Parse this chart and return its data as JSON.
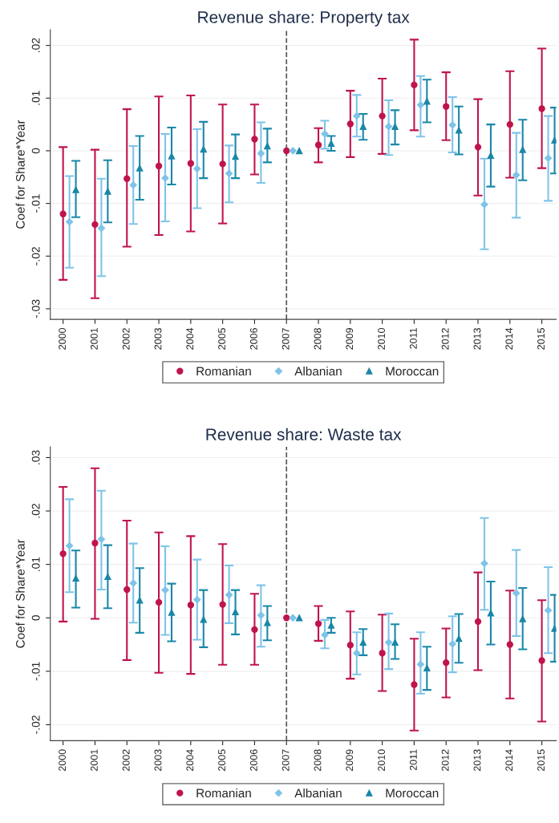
{
  "chart_data": [
    {
      "type": "scatter",
      "title": "Revenue share: Property tax",
      "ylabel": "Coef for Share*Year",
      "categories": [
        "2000",
        "2001",
        "2002",
        "2003",
        "2004",
        "2005",
        "2006",
        "2007",
        "2008",
        "2009",
        "2010",
        "2011",
        "2012",
        "2013",
        "2014",
        "2015"
      ],
      "ylim": [
        -0.032,
        0.023
      ],
      "yticks": [
        {
          "value": -0.03,
          "label": "-.03"
        },
        {
          "value": -0.02,
          "label": "-.02"
        },
        {
          "value": -0.01,
          "label": "-.01"
        },
        0,
        {
          "value": 0.01,
          "label": ".01"
        },
        {
          "value": 0.02,
          "label": ".02"
        }
      ],
      "grid": "y",
      "legend": "bottom",
      "ref_lines": [
        {
          "axis": "x",
          "value": "2007",
          "color": "#555555",
          "line_style": "dashed"
        }
      ],
      "series": [
        {
          "name": "Romanian",
          "color": "#c0144a",
          "marker": "circle",
          "values": [
            -0.012,
            -0.014,
            -0.0053,
            -0.0029,
            -0.0024,
            -0.0025,
            0.0022,
            0,
            0.0011,
            0.0051,
            0.0066,
            0.0125,
            0.0084,
            0.0007,
            0.005,
            0.008
          ],
          "errors": [
            [
              -0.0245,
              0.0007
            ],
            [
              -0.028,
              0.0002
            ],
            [
              -0.0182,
              0.0079
            ],
            [
              -0.016,
              0.0103
            ],
            [
              -0.0153,
              0.0105
            ],
            [
              -0.0138,
              0.0088
            ],
            [
              -0.0045,
              0.0088
            ],
            null,
            [
              -0.0022,
              0.0043
            ],
            [
              -0.0012,
              0.0114
            ],
            [
              -0.0006,
              0.0137
            ],
            [
              0.0039,
              0.0211
            ],
            [
              0.002,
              0.0149
            ],
            [
              -0.0085,
              0.0098
            ],
            [
              -0.0051,
              0.0151
            ],
            [
              -0.0033,
              0.0194
            ]
          ]
        },
        {
          "name": "Albanian",
          "color": "#7fc4e8",
          "marker": "diamond",
          "values": [
            -0.0135,
            -0.0147,
            -0.0065,
            -0.0052,
            -0.0034,
            -0.0043,
            -0.0005,
            0,
            0.0032,
            0.0066,
            0.0046,
            0.0087,
            0.0049,
            -0.0102,
            -0.0046,
            -0.0014
          ],
          "errors": [
            [
              -0.0222,
              -0.0048
            ],
            [
              -0.0238,
              -0.0053
            ],
            [
              -0.0139,
              0.0009
            ],
            [
              -0.0134,
              0.0032
            ],
            [
              -0.0109,
              0.0041
            ],
            [
              -0.0098,
              0.001
            ],
            [
              -0.0061,
              0.0054
            ],
            null,
            [
              0.0004,
              0.0057
            ],
            [
              0.0027,
              0.0106
            ],
            [
              -0.0008,
              0.0096
            ],
            [
              0.0027,
              0.0142
            ],
            [
              -0.0003,
              0.0102
            ],
            [
              -0.0187,
              -0.0015
            ],
            [
              -0.0127,
              0.0034
            ],
            [
              -0.0095,
              0.0066
            ]
          ]
        },
        {
          "name": "Moroccan",
          "color": "#1a87a8",
          "marker": "triangle",
          "values": [
            -0.0074,
            -0.0077,
            -0.0033,
            -0.001,
            0.0003,
            -0.0011,
            0.0009,
            0,
            0.0014,
            0.0046,
            0.0046,
            0.0094,
            0.0039,
            -0.0009,
            0.0002,
            0.002
          ],
          "errors": [
            [
              -0.0126,
              -0.0019
            ],
            [
              -0.0136,
              -0.0018
            ],
            [
              -0.0093,
              0.0028
            ],
            [
              -0.0064,
              0.0044
            ],
            [
              -0.0052,
              0.0055
            ],
            [
              -0.0052,
              0.0031
            ],
            [
              -0.0022,
              0.0042
            ],
            null,
            [
              0.0,
              0.0028
            ],
            [
              0.0021,
              0.007
            ],
            [
              0.0012,
              0.0077
            ],
            [
              0.0054,
              0.0135
            ],
            [
              -0.0007,
              0.0084
            ],
            [
              -0.0068,
              0.005
            ],
            [
              -0.0056,
              0.0059
            ],
            [
              -0.0043,
              0.0082
            ]
          ]
        }
      ]
    },
    {
      "type": "scatter",
      "title": "Revenue share: Waste tax",
      "ylabel": "Coef for Share*Year",
      "categories": [
        "2000",
        "2001",
        "2002",
        "2003",
        "2004",
        "2005",
        "2006",
        "2007",
        "2008",
        "2009",
        "2010",
        "2011",
        "2012",
        "2013",
        "2014",
        "2015"
      ],
      "ylim": [
        -0.023,
        0.032
      ],
      "yticks": [
        {
          "value": -0.02,
          "label": "-.02"
        },
        {
          "value": -0.01,
          "label": "-.01"
        },
        0,
        {
          "value": 0.01,
          "label": ".01"
        },
        {
          "value": 0.02,
          "label": ".02"
        },
        {
          "value": 0.03,
          "label": ".03"
        }
      ],
      "grid": "y",
      "legend": "bottom",
      "ref_lines": [
        {
          "axis": "x",
          "value": "2007",
          "color": "#555555",
          "line_style": "dashed"
        }
      ],
      "series": [
        {
          "name": "Romanian",
          "color": "#c0144a",
          "marker": "circle",
          "values": [
            0.012,
            0.014,
            0.0053,
            0.0029,
            0.0024,
            0.0025,
            -0.0022,
            0,
            -0.0011,
            -0.0051,
            -0.0066,
            -0.0125,
            -0.0084,
            -0.0007,
            -0.005,
            -0.008
          ],
          "errors": [
            [
              -0.0007,
              0.0245
            ],
            [
              -0.0002,
              0.028
            ],
            [
              -0.0079,
              0.0182
            ],
            [
              -0.0103,
              0.016
            ],
            [
              -0.0105,
              0.0153
            ],
            [
              -0.0088,
              0.0138
            ],
            [
              -0.0088,
              0.0045
            ],
            null,
            [
              -0.0043,
              0.0022
            ],
            [
              -0.0114,
              0.0012
            ],
            [
              -0.0137,
              0.0006
            ],
            [
              -0.0211,
              -0.0039
            ],
            [
              -0.0149,
              -0.002
            ],
            [
              -0.0098,
              0.0085
            ],
            [
              -0.0151,
              0.0051
            ],
            [
              -0.0194,
              0.0033
            ]
          ]
        },
        {
          "name": "Albanian",
          "color": "#7fc4e8",
          "marker": "diamond",
          "values": [
            0.0135,
            0.0147,
            0.0065,
            0.0052,
            0.0034,
            0.0043,
            0.0005,
            0,
            -0.0032,
            -0.0066,
            -0.0046,
            -0.0087,
            -0.0049,
            0.0102,
            0.0046,
            0.0014
          ],
          "errors": [
            [
              0.0048,
              0.0222
            ],
            [
              0.0053,
              0.0238
            ],
            [
              -0.0009,
              0.0139
            ],
            [
              -0.0032,
              0.0134
            ],
            [
              -0.0041,
              0.0109
            ],
            [
              -0.001,
              0.0098
            ],
            [
              -0.0054,
              0.0061
            ],
            null,
            [
              -0.0057,
              -0.0004
            ],
            [
              -0.0106,
              -0.0027
            ],
            [
              -0.0096,
              0.0008
            ],
            [
              -0.0142,
              -0.0027
            ],
            [
              -0.0102,
              0.0003
            ],
            [
              0.0015,
              0.0187
            ],
            [
              -0.0034,
              0.0127
            ],
            [
              -0.0066,
              0.0095
            ]
          ]
        },
        {
          "name": "Moroccan",
          "color": "#1a87a8",
          "marker": "triangle",
          "values": [
            0.0074,
            0.0077,
            0.0033,
            0.001,
            -0.0003,
            0.0011,
            -0.0009,
            0,
            -0.0014,
            -0.0046,
            -0.0046,
            -0.0094,
            -0.0039,
            0.0009,
            -0.0002,
            -0.002
          ],
          "errors": [
            [
              0.0019,
              0.0126
            ],
            [
              0.0018,
              0.0136
            ],
            [
              -0.0028,
              0.0093
            ],
            [
              -0.0044,
              0.0064
            ],
            [
              -0.0055,
              0.0052
            ],
            [
              -0.0031,
              0.0052
            ],
            [
              -0.0042,
              0.0022
            ],
            null,
            [
              -0.0028,
              0.0
            ],
            [
              -0.007,
              -0.0021
            ],
            [
              -0.0077,
              -0.0012
            ],
            [
              -0.0135,
              -0.0054
            ],
            [
              -0.0084,
              0.0007
            ],
            [
              -0.005,
              0.0068
            ],
            [
              -0.0059,
              0.0056
            ],
            [
              -0.0082,
              0.0043
            ]
          ]
        }
      ]
    }
  ]
}
